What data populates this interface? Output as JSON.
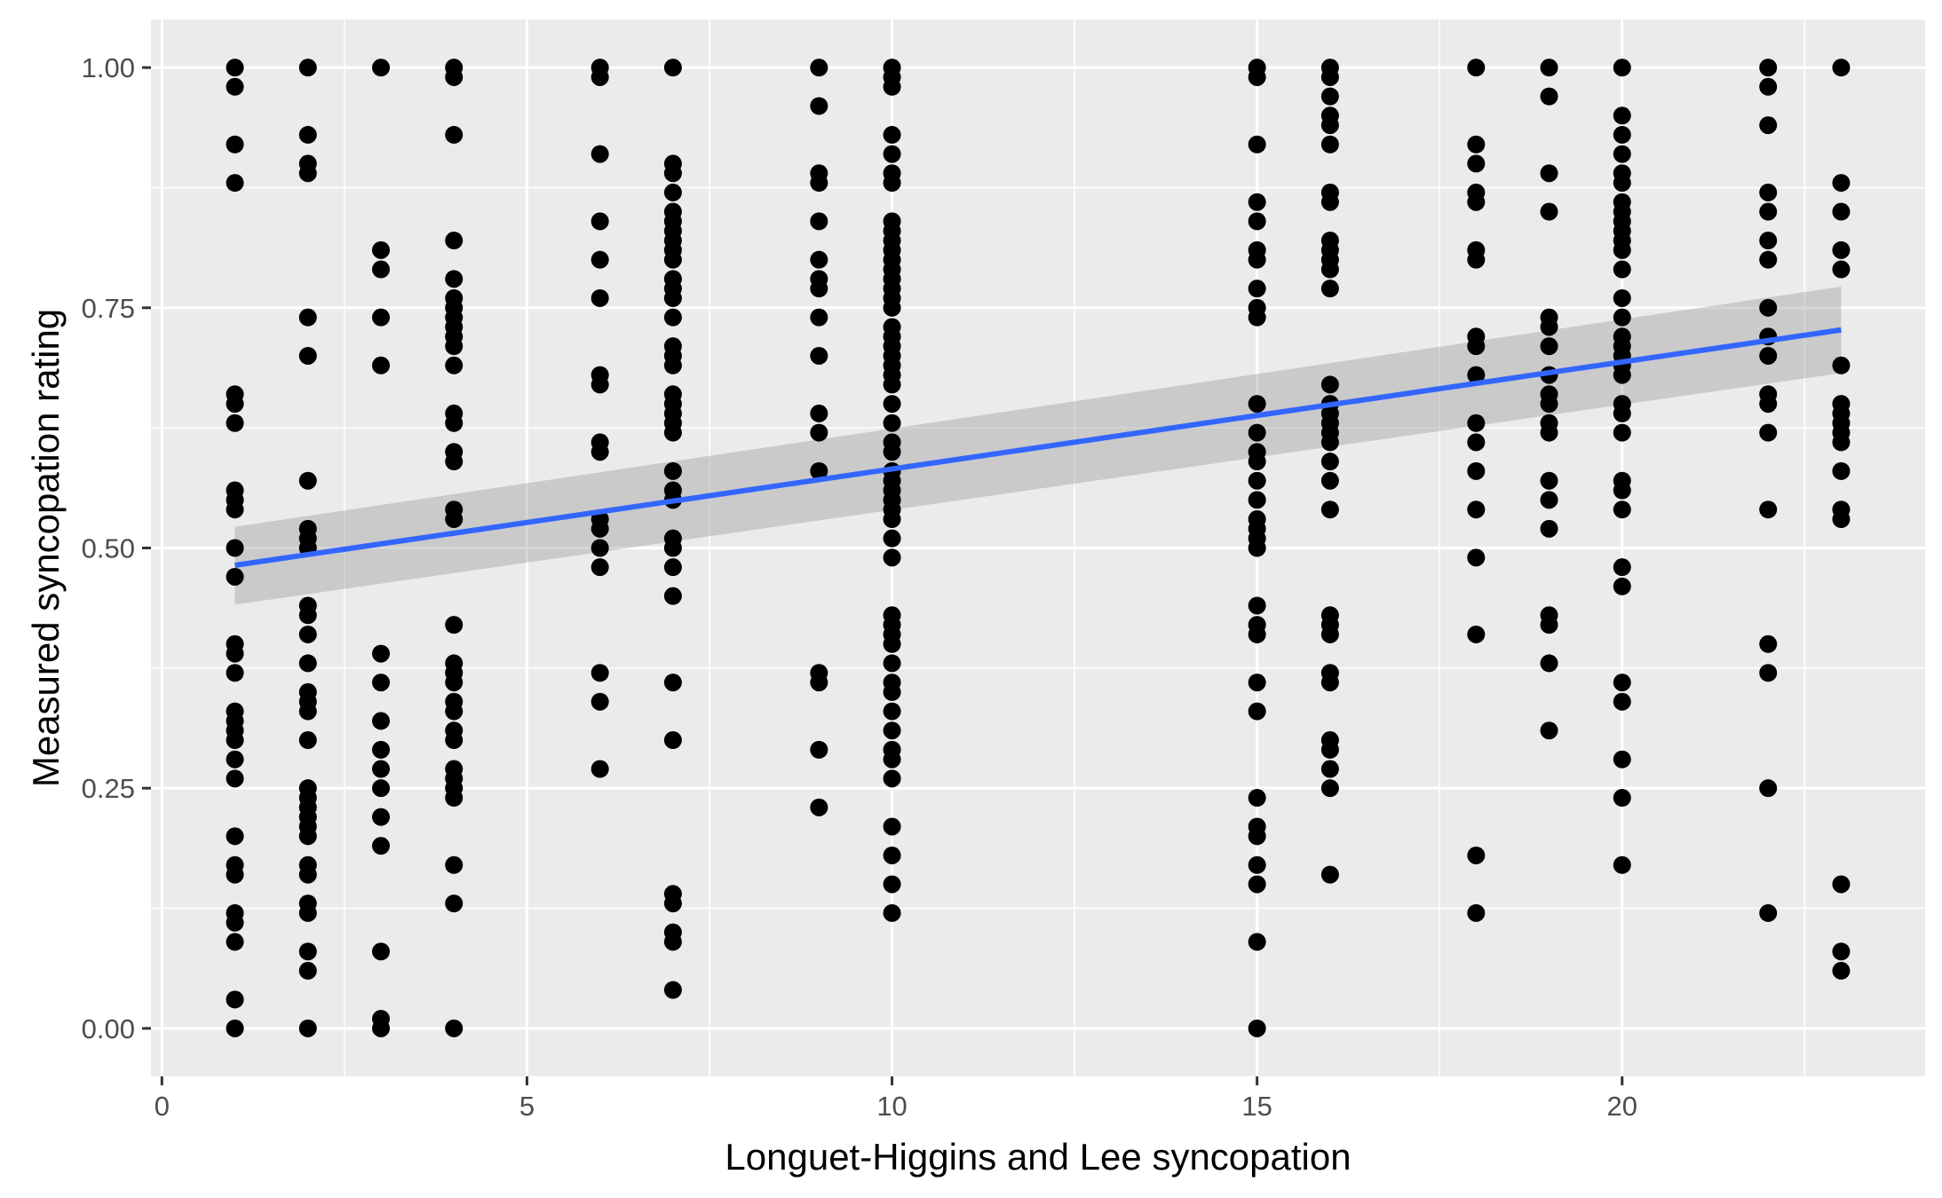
{
  "chart_data": {
    "type": "scatter",
    "title": "",
    "xlabel": "Longuet-Higgins and Lee syncopation",
    "ylabel": "Measured syncopation rating",
    "xlim": [
      -0.15,
      24.15
    ],
    "ylim": [
      -0.05,
      1.05
    ],
    "x_ticks": [
      0,
      5,
      10,
      15,
      20
    ],
    "x_tick_labels": [
      "0",
      "5",
      "10",
      "15",
      "20"
    ],
    "y_ticks": [
      0,
      0.25,
      0.5,
      0.75,
      1.0
    ],
    "y_tick_labels": [
      "0.00",
      "0.25",
      "0.50",
      "0.75",
      "1.00"
    ],
    "x_minor_ticks": [
      2.5,
      7.5,
      12.5,
      17.5,
      22.5
    ],
    "y_minor_ticks": [
      0.125,
      0.375,
      0.625,
      0.875
    ],
    "grid": true,
    "colors": {
      "panel_background": "#ebebeb",
      "grid": "#ffffff",
      "points": "#000000",
      "fit_line": "#3366ff",
      "confidence_band": "#999999"
    },
    "points_by_x": [
      {
        "x": 1,
        "y": [
          1.0,
          0.98,
          0.92,
          0.88,
          0.66,
          0.65,
          0.63,
          0.56,
          0.55,
          0.54,
          0.5,
          0.47,
          0.4,
          0.39,
          0.37,
          0.33,
          0.32,
          0.31,
          0.3,
          0.28,
          0.26,
          0.2,
          0.17,
          0.16,
          0.12,
          0.11,
          0.09,
          0.03,
          0.0
        ]
      },
      {
        "x": 2,
        "y": [
          1.0,
          0.93,
          0.9,
          0.89,
          0.74,
          0.7,
          0.57,
          0.52,
          0.51,
          0.5,
          0.44,
          0.43,
          0.41,
          0.38,
          0.35,
          0.34,
          0.33,
          0.3,
          0.25,
          0.24,
          0.23,
          0.22,
          0.21,
          0.2,
          0.17,
          0.16,
          0.13,
          0.12,
          0.08,
          0.06,
          0.0
        ]
      },
      {
        "x": 3,
        "y": [
          1.0,
          0.81,
          0.79,
          0.74,
          0.69,
          0.39,
          0.36,
          0.32,
          0.29,
          0.27,
          0.25,
          0.22,
          0.19,
          0.08,
          0.01,
          0.0
        ]
      },
      {
        "x": 4,
        "y": [
          1.0,
          0.99,
          0.93,
          0.82,
          0.78,
          0.76,
          0.75,
          0.74,
          0.73,
          0.72,
          0.71,
          0.69,
          0.64,
          0.63,
          0.6,
          0.59,
          0.54,
          0.53,
          0.42,
          0.38,
          0.37,
          0.36,
          0.34,
          0.33,
          0.31,
          0.3,
          0.27,
          0.26,
          0.25,
          0.24,
          0.17,
          0.13,
          0.0
        ]
      },
      {
        "x": 6,
        "y": [
          1.0,
          0.99,
          0.91,
          0.84,
          0.8,
          0.76,
          0.68,
          0.67,
          0.61,
          0.6,
          0.53,
          0.52,
          0.5,
          0.48,
          0.37,
          0.34,
          0.27
        ]
      },
      {
        "x": 7,
        "y": [
          1.0,
          0.9,
          0.89,
          0.87,
          0.85,
          0.84,
          0.83,
          0.82,
          0.81,
          0.8,
          0.78,
          0.77,
          0.76,
          0.74,
          0.71,
          0.7,
          0.69,
          0.66,
          0.65,
          0.64,
          0.63,
          0.62,
          0.58,
          0.56,
          0.55,
          0.51,
          0.5,
          0.48,
          0.45,
          0.36,
          0.3,
          0.14,
          0.13,
          0.1,
          0.09,
          0.04
        ]
      },
      {
        "x": 9,
        "y": [
          1.0,
          0.96,
          0.89,
          0.88,
          0.84,
          0.8,
          0.78,
          0.77,
          0.74,
          0.7,
          0.64,
          0.62,
          0.58,
          0.37,
          0.36,
          0.29,
          0.23
        ]
      },
      {
        "x": 10,
        "y": [
          1.0,
          0.99,
          0.98,
          0.93,
          0.91,
          0.89,
          0.88,
          0.84,
          0.83,
          0.82,
          0.81,
          0.8,
          0.79,
          0.78,
          0.77,
          0.76,
          0.75,
          0.73,
          0.72,
          0.71,
          0.7,
          0.69,
          0.68,
          0.67,
          0.65,
          0.63,
          0.61,
          0.6,
          0.58,
          0.57,
          0.56,
          0.55,
          0.54,
          0.53,
          0.51,
          0.49,
          0.43,
          0.42,
          0.41,
          0.4,
          0.38,
          0.36,
          0.35,
          0.33,
          0.31,
          0.29,
          0.28,
          0.26,
          0.21,
          0.18,
          0.15,
          0.12
        ]
      },
      {
        "x": 15,
        "y": [
          1.0,
          0.99,
          0.92,
          0.86,
          0.84,
          0.81,
          0.8,
          0.77,
          0.75,
          0.74,
          0.65,
          0.62,
          0.6,
          0.59,
          0.57,
          0.55,
          0.53,
          0.52,
          0.51,
          0.5,
          0.44,
          0.42,
          0.41,
          0.36,
          0.33,
          0.24,
          0.21,
          0.2,
          0.17,
          0.15,
          0.09,
          0.0
        ]
      },
      {
        "x": 16,
        "y": [
          1.0,
          0.99,
          0.97,
          0.95,
          0.94,
          0.92,
          0.87,
          0.86,
          0.82,
          0.81,
          0.8,
          0.79,
          0.77,
          0.67,
          0.65,
          0.64,
          0.63,
          0.62,
          0.61,
          0.59,
          0.57,
          0.54,
          0.43,
          0.42,
          0.41,
          0.37,
          0.36,
          0.3,
          0.29,
          0.27,
          0.25,
          0.16
        ]
      },
      {
        "x": 18,
        "y": [
          1.0,
          0.92,
          0.9,
          0.87,
          0.86,
          0.81,
          0.8,
          0.72,
          0.71,
          0.68,
          0.63,
          0.61,
          0.58,
          0.54,
          0.49,
          0.41,
          0.18,
          0.12
        ]
      },
      {
        "x": 19,
        "y": [
          1.0,
          0.97,
          0.89,
          0.85,
          0.74,
          0.73,
          0.71,
          0.68,
          0.66,
          0.65,
          0.63,
          0.62,
          0.57,
          0.55,
          0.52,
          0.43,
          0.42,
          0.38,
          0.31
        ]
      },
      {
        "x": 20,
        "y": [
          1.0,
          0.95,
          0.93,
          0.91,
          0.89,
          0.88,
          0.86,
          0.85,
          0.84,
          0.83,
          0.82,
          0.81,
          0.79,
          0.76,
          0.74,
          0.72,
          0.71,
          0.7,
          0.69,
          0.68,
          0.65,
          0.64,
          0.62,
          0.57,
          0.56,
          0.54,
          0.48,
          0.46,
          0.36,
          0.34,
          0.28,
          0.24,
          0.17
        ]
      },
      {
        "x": 22,
        "y": [
          1.0,
          0.98,
          0.94,
          0.87,
          0.85,
          0.82,
          0.8,
          0.75,
          0.72,
          0.7,
          0.66,
          0.65,
          0.62,
          0.54,
          0.4,
          0.37,
          0.25,
          0.12
        ]
      },
      {
        "x": 23,
        "y": [
          1.0,
          0.88,
          0.85,
          0.81,
          0.79,
          0.69,
          0.65,
          0.64,
          0.63,
          0.62,
          0.61,
          0.58,
          0.54,
          0.53,
          0.15,
          0.08,
          0.06
        ]
      }
    ],
    "fit": {
      "type": "linear",
      "x": [
        1,
        23
      ],
      "y": [
        0.482,
        0.727
      ],
      "ci_lower": [
        0.441,
        0.682
      ],
      "ci_upper": [
        0.522,
        0.772
      ]
    }
  }
}
